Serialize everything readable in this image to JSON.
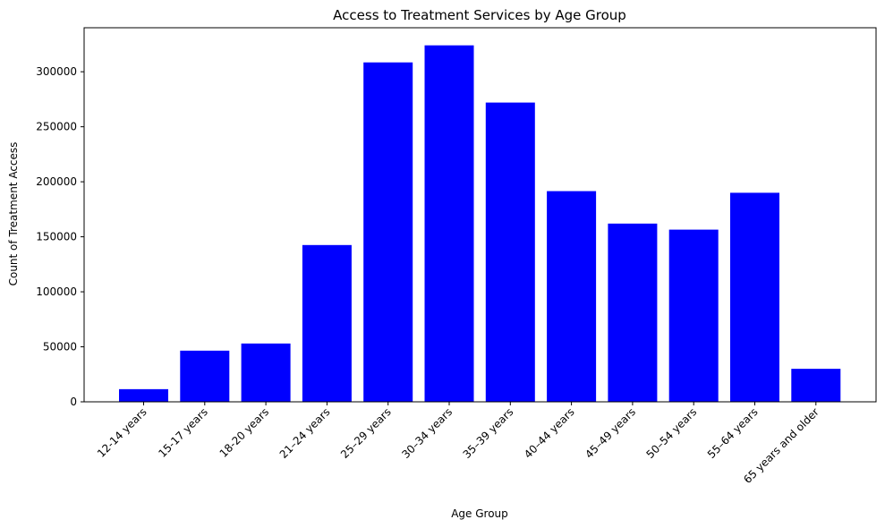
{
  "chart_data": {
    "type": "bar",
    "title": "Access to Treatment Services by Age Group",
    "xlabel": "Age Group",
    "ylabel": "Count of Treatment Access",
    "categories": [
      "12-14 years",
      "15-17 years",
      "18-20 years",
      "21–24 years",
      "25–29 years",
      "30–34 years",
      "35–39 years",
      "40–44 years",
      "45–49 years",
      "50–54 years",
      "55–64 years",
      "65 years and older"
    ],
    "values": [
      11500,
      46500,
      53000,
      142500,
      308500,
      324000,
      272000,
      191500,
      162000,
      156500,
      190000,
      30000
    ],
    "ylim": [
      0,
      340000
    ],
    "yticks": [
      0,
      50000,
      100000,
      150000,
      200000,
      250000,
      300000
    ],
    "ytick_labels": [
      "0",
      "50000",
      "100000",
      "150000",
      "200000",
      "250000",
      "300000"
    ],
    "bar_color": "#0000ff",
    "grid": false,
    "legend": "none"
  }
}
